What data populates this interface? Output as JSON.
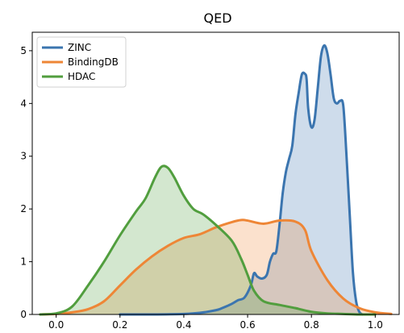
{
  "chart_data": {
    "type": "area",
    "title": "QED",
    "xlabel": "",
    "ylabel": "",
    "xlim": [
      -0.075,
      1.075
    ],
    "ylim": [
      0,
      5.35
    ],
    "xticks": [
      0.0,
      0.2,
      0.4,
      0.6,
      0.8,
      1.0
    ],
    "xtick_labels": [
      "0.0",
      "0.2",
      "0.4",
      "0.6",
      "0.8",
      "1.0"
    ],
    "yticks": [
      0,
      1,
      2,
      3,
      4,
      5
    ],
    "ytick_labels": [
      "0",
      "1",
      "2",
      "3",
      "4",
      "5"
    ],
    "grid": false,
    "legend_position": "top-left",
    "series": [
      {
        "name": "ZINC",
        "color": "#3b75af",
        "x": [
          0.2,
          0.3,
          0.4,
          0.45,
          0.5,
          0.52,
          0.55,
          0.57,
          0.59,
          0.61,
          0.62,
          0.63,
          0.645,
          0.66,
          0.67,
          0.68,
          0.69,
          0.7,
          0.71,
          0.72,
          0.73,
          0.74,
          0.75,
          0.76,
          0.77,
          0.78,
          0.785,
          0.79,
          0.8,
          0.81,
          0.82,
          0.83,
          0.84,
          0.85,
          0.86,
          0.87,
          0.88,
          0.89,
          0.9,
          0.91,
          0.92,
          0.93,
          0.94,
          0.95,
          0.96
        ],
        "y": [
          0.0,
          0.0,
          0.01,
          0.03,
          0.08,
          0.12,
          0.2,
          0.27,
          0.32,
          0.55,
          0.78,
          0.72,
          0.68,
          0.75,
          1.0,
          1.15,
          1.2,
          1.7,
          2.3,
          2.7,
          2.95,
          3.2,
          3.8,
          4.2,
          4.55,
          4.56,
          4.45,
          3.9,
          3.55,
          3.7,
          4.3,
          4.9,
          5.1,
          4.95,
          4.55,
          4.1,
          4.0,
          4.05,
          3.95,
          3.0,
          1.9,
          0.8,
          0.25,
          0.05,
          0.0
        ]
      },
      {
        "name": "BindingDB",
        "color": "#ee8636",
        "x": [
          -0.05,
          0.0,
          0.05,
          0.1,
          0.15,
          0.2,
          0.25,
          0.3,
          0.35,
          0.4,
          0.45,
          0.5,
          0.55,
          0.58,
          0.6,
          0.65,
          0.7,
          0.75,
          0.78,
          0.8,
          0.85,
          0.9,
          0.95,
          1.0,
          1.05
        ],
        "y": [
          0.0,
          0.01,
          0.04,
          0.1,
          0.25,
          0.55,
          0.85,
          1.1,
          1.3,
          1.45,
          1.52,
          1.65,
          1.75,
          1.79,
          1.78,
          1.72,
          1.78,
          1.76,
          1.6,
          1.2,
          0.65,
          0.3,
          0.12,
          0.04,
          0.01
        ]
      },
      {
        "name": "HDAC",
        "color": "#519e3e",
        "x": [
          -0.05,
          0.0,
          0.05,
          0.1,
          0.15,
          0.2,
          0.25,
          0.28,
          0.31,
          0.33,
          0.35,
          0.37,
          0.4,
          0.43,
          0.46,
          0.5,
          0.55,
          0.58,
          0.6,
          0.62,
          0.65,
          0.7,
          0.75,
          0.8,
          0.85,
          0.9,
          0.95,
          1.0
        ],
        "y": [
          0.0,
          0.02,
          0.15,
          0.55,
          1.0,
          1.5,
          1.95,
          2.2,
          2.6,
          2.8,
          2.78,
          2.6,
          2.25,
          2.0,
          1.9,
          1.7,
          1.4,
          1.05,
          0.75,
          0.45,
          0.25,
          0.18,
          0.12,
          0.05,
          0.02,
          0.01,
          0.0,
          0.0
        ]
      }
    ]
  }
}
